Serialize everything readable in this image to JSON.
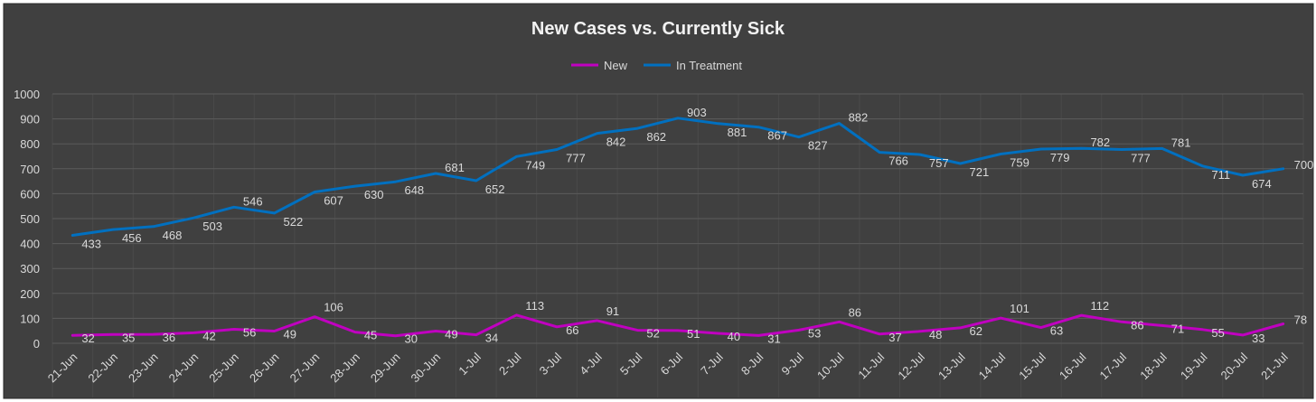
{
  "chart_data": {
    "type": "line",
    "title": "New Cases vs. Currently Sick",
    "categories": [
      "21-Jun",
      "22-Jun",
      "23-Jun",
      "24-Jun",
      "25-Jun",
      "26-Jun",
      "27-Jun",
      "28-Jun",
      "29-Jun",
      "30-Jun",
      "1-Jul",
      "2-Jul",
      "3-Jul",
      "4-Jul",
      "5-Jul",
      "6-Jul",
      "7-Jul",
      "8-Jul",
      "9-Jul",
      "10-Jul",
      "11-Jul",
      "12-Jul",
      "13-Jul",
      "14-Jul",
      "15-Jul",
      "16-Jul",
      "17-Jul",
      "18-Jul",
      "19-Jul",
      "20-Jul",
      "21-Jul"
    ],
    "series": [
      {
        "name": "New",
        "color": "#c000c0",
        "values": [
          32,
          35,
          36,
          42,
          56,
          49,
          106,
          45,
          30,
          49,
          34,
          113,
          66,
          91,
          52,
          51,
          40,
          31,
          53,
          86,
          37,
          48,
          62,
          101,
          63,
          112,
          86,
          71,
          55,
          33,
          78
        ]
      },
      {
        "name": "In Treatment",
        "color": "#0070c0",
        "values": [
          433,
          456,
          468,
          503,
          546,
          522,
          607,
          630,
          648,
          681,
          652,
          749,
          777,
          842,
          862,
          903,
          881,
          867,
          827,
          882,
          766,
          757,
          721,
          759,
          779,
          782,
          777,
          781,
          711,
          674,
          700
        ]
      }
    ],
    "yticks": [
      "0",
      "100",
      "200",
      "300",
      "400",
      "500",
      "600",
      "700",
      "800",
      "900",
      "1000"
    ],
    "ylim": [
      0,
      1000
    ],
    "legend_position": "top",
    "grid": true,
    "background_color": "#404040"
  }
}
